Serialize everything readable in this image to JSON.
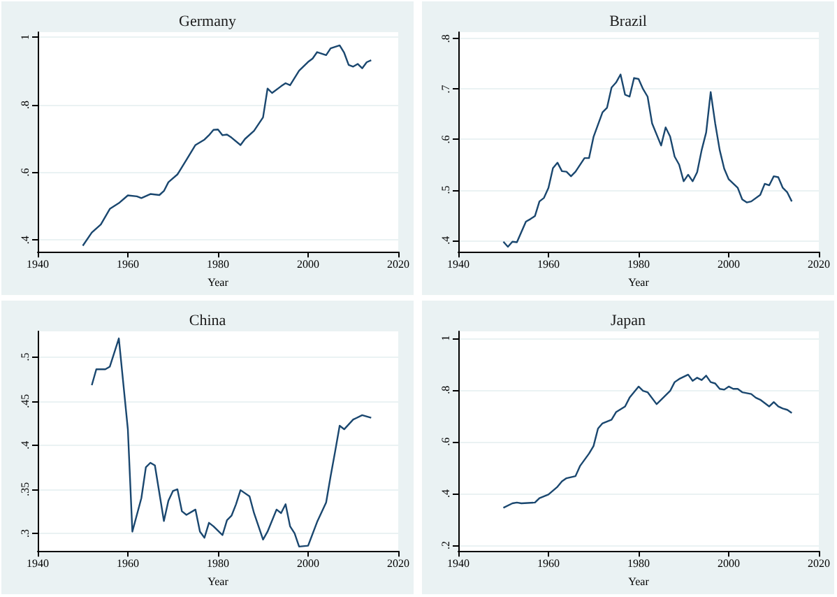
{
  "chart_data": [
    {
      "type": "line",
      "title": "Germany",
      "xlabel": "Year",
      "color": "#1a476f",
      "grid": "y",
      "xlim": [
        1940,
        2020
      ],
      "xticks": [
        1940,
        1960,
        1980,
        2000,
        2020
      ],
      "ylim": [
        0.365,
        1.015
      ],
      "yticks": [
        {
          "value": 0.4,
          "label": ".4"
        },
        {
          "value": 0.6,
          "label": ".6"
        },
        {
          "value": 0.8,
          "label": ".8"
        },
        1
      ],
      "x": [
        1950,
        1952,
        1954,
        1956,
        1958,
        1960,
        1962,
        1963,
        1965,
        1967,
        1968,
        1969,
        1971,
        1973,
        1975,
        1977,
        1978,
        1979,
        1980,
        1981,
        1982,
        1983,
        1985,
        1986,
        1988,
        1990,
        1991,
        1992,
        1994,
        1995,
        1996,
        1998,
        2000,
        2001,
        2002,
        2004,
        2005,
        2007,
        2008,
        2009,
        2010,
        2011,
        2012,
        2013,
        2014
      ],
      "values": [
        0.383,
        0.422,
        0.446,
        0.492,
        0.509,
        0.532,
        0.529,
        0.524,
        0.536,
        0.533,
        0.545,
        0.571,
        0.594,
        0.637,
        0.681,
        0.697,
        0.71,
        0.726,
        0.727,
        0.71,
        0.712,
        0.703,
        0.681,
        0.699,
        0.723,
        0.763,
        0.848,
        0.835,
        0.855,
        0.864,
        0.858,
        0.901,
        0.927,
        0.937,
        0.956,
        0.947,
        0.967,
        0.976,
        0.954,
        0.918,
        0.913,
        0.921,
        0.908,
        0.926,
        0.932
      ]
    },
    {
      "type": "line",
      "title": "Brazil",
      "xlabel": "Year",
      "color": "#1a476f",
      "grid": "y",
      "xlim": [
        1940,
        2020
      ],
      "xticks": [
        1940,
        1960,
        1980,
        2000,
        2020
      ],
      "ylim": [
        0.377,
        0.813
      ],
      "yticks": [
        {
          "value": 0.4,
          "label": ".4"
        },
        {
          "value": 0.5,
          "label": ".5"
        },
        {
          "value": 0.6,
          "label": ".6"
        },
        {
          "value": 0.7,
          "label": ".7"
        },
        {
          "value": 0.8,
          "label": ".8"
        }
      ],
      "x": [
        1950,
        1951,
        1952,
        1953,
        1955,
        1956,
        1957,
        1958,
        1959,
        1960,
        1961,
        1962,
        1963,
        1964,
        1965,
        1966,
        1968,
        1969,
        1970,
        1972,
        1973,
        1974,
        1975,
        1976,
        1977,
        1978,
        1979,
        1980,
        1981,
        1982,
        1983,
        1985,
        1986,
        1987,
        1988,
        1989,
        1990,
        1991,
        1992,
        1993,
        1994,
        1995,
        1996,
        1997,
        1998,
        1999,
        2000,
        2002,
        2003,
        2004,
        2005,
        2007,
        2008,
        2009,
        2010,
        2011,
        2012,
        2013,
        2014
      ],
      "values": [
        0.397,
        0.387,
        0.397,
        0.396,
        0.437,
        0.442,
        0.448,
        0.477,
        0.484,
        0.504,
        0.543,
        0.554,
        0.537,
        0.536,
        0.527,
        0.536,
        0.563,
        0.563,
        0.605,
        0.654,
        0.663,
        0.703,
        0.713,
        0.729,
        0.689,
        0.685,
        0.722,
        0.72,
        0.7,
        0.685,
        0.632,
        0.588,
        0.624,
        0.606,
        0.566,
        0.55,
        0.517,
        0.53,
        0.517,
        0.535,
        0.579,
        0.614,
        0.694,
        0.632,
        0.579,
        0.542,
        0.521,
        0.504,
        0.481,
        0.475,
        0.477,
        0.49,
        0.512,
        0.509,
        0.527,
        0.525,
        0.504,
        0.495,
        0.477
      ]
    },
    {
      "type": "line",
      "title": "China",
      "xlabel": "Year",
      "color": "#1a476f",
      "grid": "y",
      "xlim": [
        1940,
        2020
      ],
      "xticks": [
        1940,
        1960,
        1980,
        2000,
        2020
      ],
      "ylim": [
        0.28,
        0.529
      ],
      "yticks": [
        {
          "value": 0.3,
          "label": ".3"
        },
        {
          "value": 0.35,
          "label": ".35"
        },
        {
          "value": 0.4,
          "label": ".4"
        },
        {
          "value": 0.45,
          "label": ".45"
        },
        {
          "value": 0.5,
          "label": ".5"
        }
      ],
      "x": [
        1952,
        1953,
        1955,
        1956,
        1958,
        1960,
        1961,
        1963,
        1964,
        1965,
        1966,
        1968,
        1969,
        1970,
        1971,
        1972,
        1973,
        1975,
        1976,
        1977,
        1978,
        1979,
        1981,
        1982,
        1983,
        1984,
        1985,
        1987,
        1988,
        1990,
        1991,
        1993,
        1994,
        1995,
        1996,
        1997,
        1998,
        2000,
        2002,
        2004,
        2005,
        2006,
        2007,
        2008,
        2010,
        2012,
        2014
      ],
      "values": [
        0.468,
        0.486,
        0.486,
        0.489,
        0.521,
        0.418,
        0.302,
        0.34,
        0.375,
        0.38,
        0.377,
        0.314,
        0.337,
        0.348,
        0.35,
        0.325,
        0.321,
        0.327,
        0.302,
        0.295,
        0.312,
        0.308,
        0.298,
        0.315,
        0.32,
        0.333,
        0.349,
        0.342,
        0.323,
        0.293,
        0.302,
        0.327,
        0.323,
        0.333,
        0.308,
        0.3,
        0.285,
        0.286,
        0.313,
        0.335,
        0.365,
        0.393,
        0.422,
        0.418,
        0.429,
        0.434,
        0.431
      ]
    },
    {
      "type": "line",
      "title": "Japan",
      "xlabel": "Year",
      "color": "#1a476f",
      "grid": "y",
      "xlim": [
        1940,
        2020
      ],
      "xticks": [
        1940,
        1960,
        1980,
        2000,
        2020
      ],
      "ylim": [
        0.178,
        1.026
      ],
      "yticks": [
        {
          "value": 0.2,
          "label": ".2"
        },
        {
          "value": 0.4,
          "label": ".4"
        },
        {
          "value": 0.6,
          "label": ".6"
        },
        {
          "value": 0.8,
          "label": ".8"
        },
        1
      ],
      "x": [
        1950,
        1952,
        1953,
        1954,
        1957,
        1958,
        1960,
        1962,
        1963,
        1964,
        1966,
        1967,
        1969,
        1970,
        1971,
        1972,
        1974,
        1975,
        1977,
        1978,
        1980,
        1981,
        1982,
        1984,
        1985,
        1987,
        1988,
        1989,
        1991,
        1992,
        1993,
        1994,
        1995,
        1996,
        1997,
        1998,
        1999,
        2000,
        2001,
        2002,
        2003,
        2005,
        2006,
        2007,
        2009,
        2010,
        2011,
        2012,
        2013,
        2014
      ],
      "values": [
        0.345,
        0.362,
        0.365,
        0.362,
        0.365,
        0.382,
        0.396,
        0.426,
        0.447,
        0.459,
        0.467,
        0.506,
        0.554,
        0.583,
        0.651,
        0.671,
        0.685,
        0.714,
        0.736,
        0.77,
        0.813,
        0.796,
        0.791,
        0.745,
        0.762,
        0.796,
        0.83,
        0.842,
        0.859,
        0.835,
        0.847,
        0.838,
        0.855,
        0.83,
        0.825,
        0.804,
        0.801,
        0.813,
        0.804,
        0.804,
        0.791,
        0.784,
        0.77,
        0.762,
        0.736,
        0.753,
        0.736,
        0.728,
        0.723,
        0.711
      ]
    }
  ]
}
